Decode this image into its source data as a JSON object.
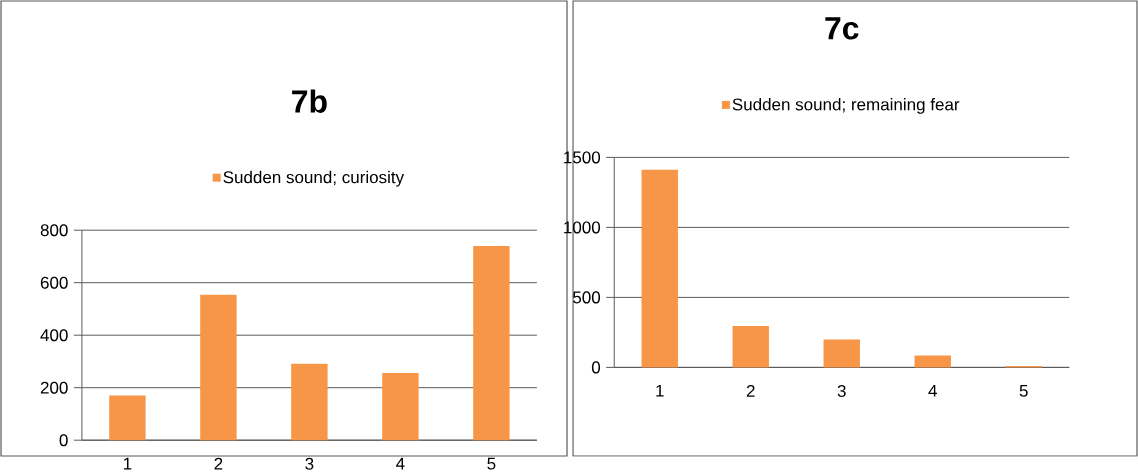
{
  "chart_data": [
    {
      "type": "bar",
      "title": "7b",
      "categories": [
        "1",
        "2",
        "3",
        "4",
        "5"
      ],
      "series": [
        {
          "name": "Sudden sound; curiosity",
          "color": "#f79646",
          "values": [
            170,
            554,
            291,
            256,
            740
          ]
        }
      ],
      "ylim": [
        0,
        800
      ],
      "yticks": [
        0,
        200,
        400,
        600,
        800
      ],
      "grid": "y",
      "legend": "top"
    },
    {
      "type": "bar",
      "title": "7c",
      "categories": [
        "1",
        "2",
        "3",
        "4",
        "5"
      ],
      "series": [
        {
          "name": "Sudden sound; remaining fear",
          "color": "#f79646",
          "values": [
            1412,
            295,
            199,
            85,
            10
          ]
        }
      ],
      "ylim": [
        0,
        1500
      ],
      "yticks": [
        0,
        500,
        1000,
        1500
      ],
      "grid": "y",
      "legend": "top"
    }
  ]
}
